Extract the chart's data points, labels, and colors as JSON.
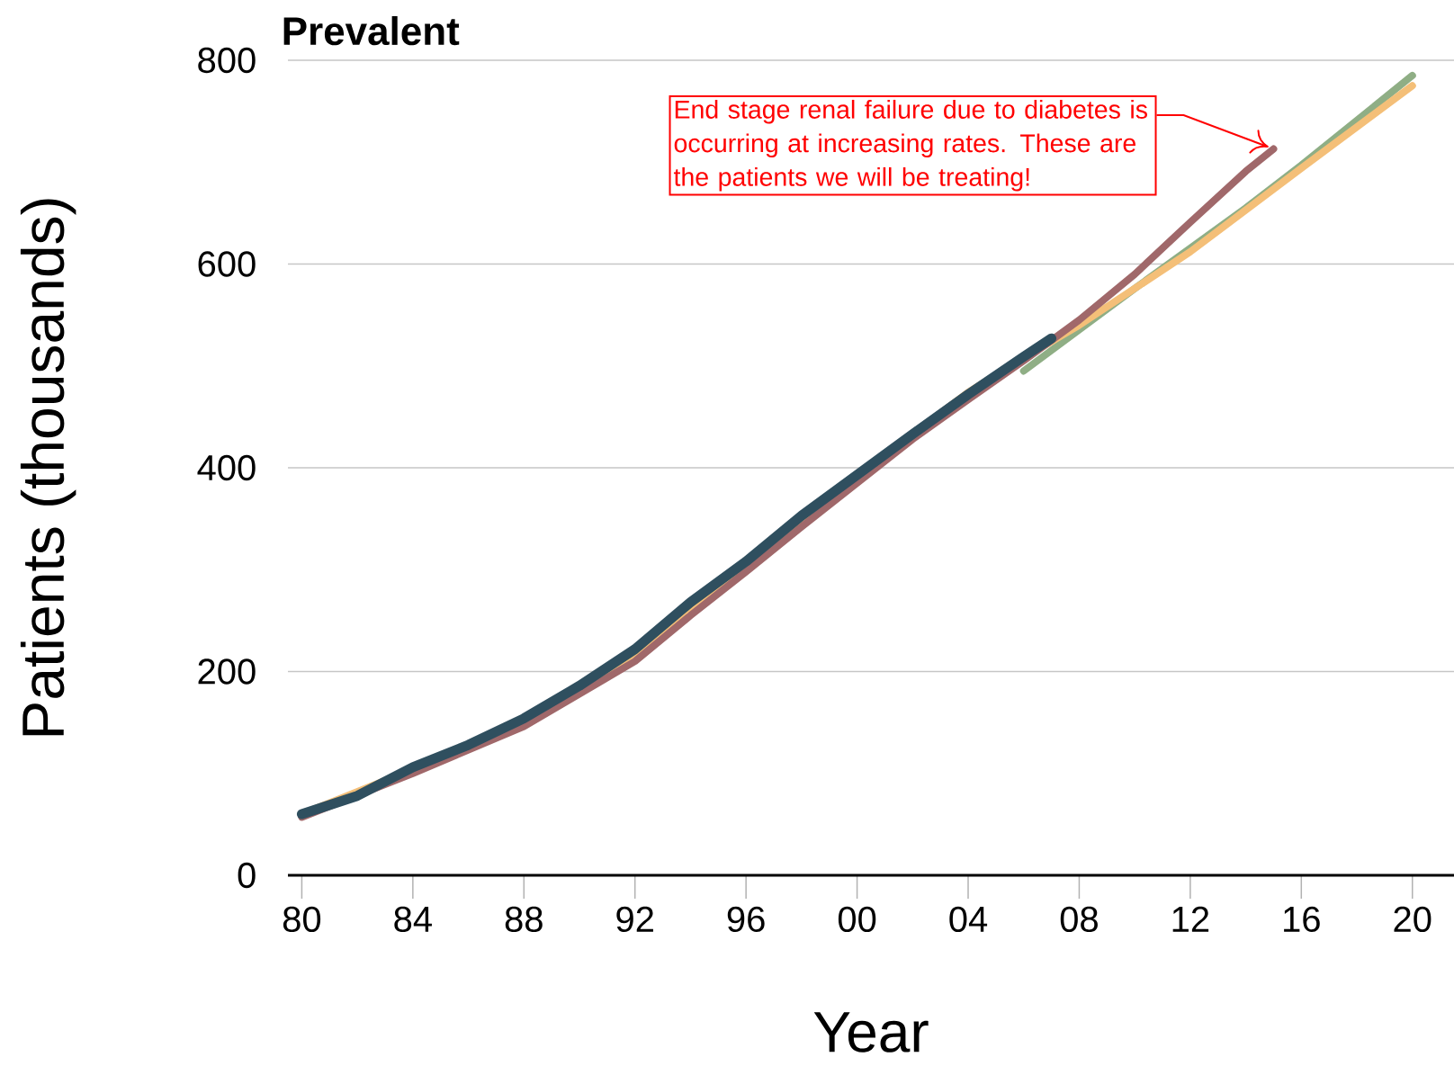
{
  "chart_data": {
    "type": "line",
    "title": "Prevalent",
    "xlabel": "Year",
    "ylabel": "Patients (thousands)",
    "xlim": [
      1979.5,
      2021.5
    ],
    "ylim": [
      0,
      800
    ],
    "xticks": [
      {
        "value": 1980,
        "label": "80"
      },
      {
        "value": 1984,
        "label": "84"
      },
      {
        "value": 1988,
        "label": "88"
      },
      {
        "value": 1992,
        "label": "92"
      },
      {
        "value": 1996,
        "label": "96"
      },
      {
        "value": 2000,
        "label": "00"
      },
      {
        "value": 2004,
        "label": "04"
      },
      {
        "value": 2008,
        "label": "08"
      },
      {
        "value": 2012,
        "label": "12"
      },
      {
        "value": 2016,
        "label": "16"
      },
      {
        "value": 2020,
        "label": "20"
      }
    ],
    "yticks": [
      0,
      200,
      400,
      600,
      800
    ],
    "grid": "y",
    "line_style": "solid",
    "series": [
      {
        "color": "#8fae85",
        "x": [
          2006,
          2010,
          2014,
          2016,
          2020
        ],
        "values": [
          495,
          576,
          655,
          697,
          785
        ]
      },
      {
        "color": "#f4bf78",
        "x": [
          1980,
          1984,
          1988,
          1992,
          1996,
          2000,
          2004,
          2006,
          2008,
          2012,
          2016,
          2020
        ],
        "values": [
          60,
          104,
          150,
          218,
          304,
          392,
          474,
          508,
          540,
          612,
          694,
          775
        ]
      },
      {
        "color": "#a0686a",
        "x": [
          1980,
          1984,
          1988,
          1992,
          1994,
          1996,
          1998,
          2000,
          2002,
          2004,
          2006,
          2008,
          2010,
          2012,
          2014,
          2015
        ],
        "values": [
          57,
          100,
          146,
          210,
          255,
          298,
          342,
          385,
          428,
          467,
          505,
          545,
          590,
          641,
          691,
          713
        ]
      },
      {
        "color": "#2f4f5f",
        "x": [
          1980,
          1982,
          1984,
          1986,
          1988,
          1990,
          1992,
          1994,
          1996,
          1998,
          2000,
          2002,
          2004,
          2006,
          2007
        ],
        "values": [
          60,
          78,
          106,
          128,
          154,
          186,
          222,
          268,
          308,
          353,
          393,
          433,
          472,
          509,
          527
        ]
      }
    ],
    "annotations": [
      {
        "text": "End stage renal failure due to diabetes is occurring at increasing rates. These are the patients we will be treating!",
        "x": 2015,
        "y": 713
      }
    ]
  }
}
